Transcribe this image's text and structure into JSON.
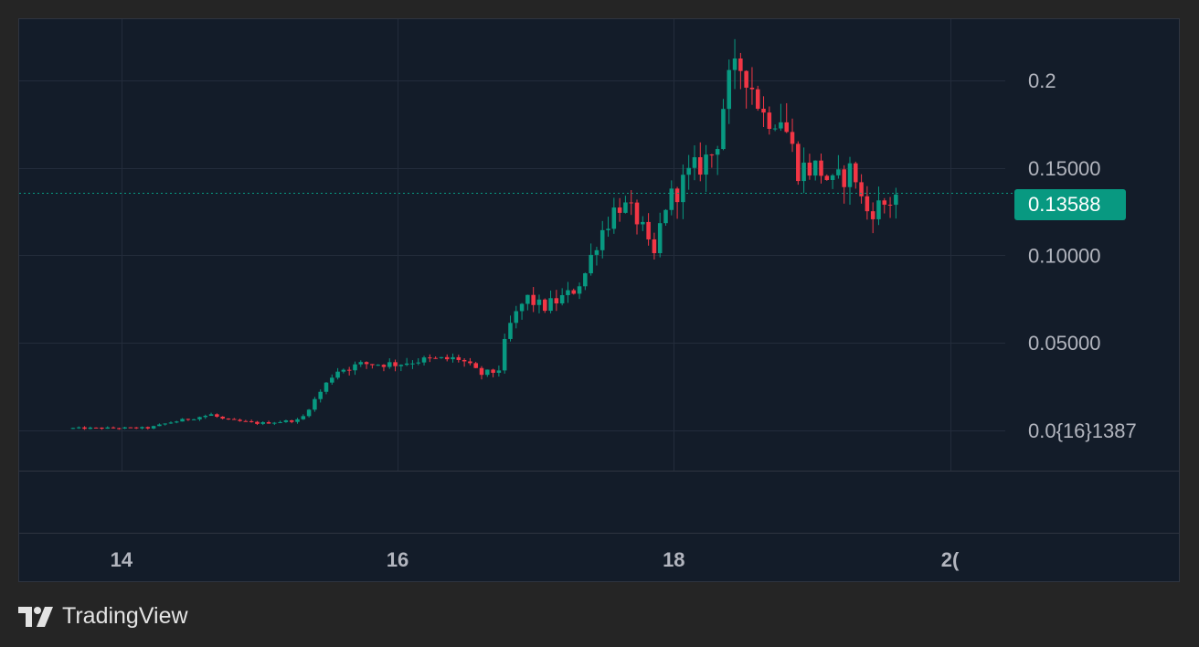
{
  "brand": {
    "name": "TradingView",
    "logo_icon": "tradingview-logo-icon"
  },
  "colors": {
    "up": "#089981",
    "down": "#f23645",
    "background": "#131c29",
    "grid": "#232c3b",
    "text": "#b2b5be"
  },
  "last_price": {
    "label": "0.13588",
    "value": 0.13588
  },
  "chart_data": {
    "type": "candlestick",
    "x_label_texts": [
      "14",
      "16",
      "18",
      "2("
    ],
    "x_ticks": [
      14,
      16,
      18,
      20
    ],
    "y_label_texts": [
      "0.2",
      "0.15000",
      "0.10000",
      "0.05000",
      "0.0{16}1387"
    ],
    "y_ticks": [
      0.2,
      0.15,
      0.1,
      0.05,
      0.0
    ],
    "xlim": [
      13.26,
      20.4
    ],
    "ylim": [
      -0.023,
      0.235
    ],
    "grid": true,
    "last_price_line": 0.13588,
    "keypoints": [
      [
        13.65,
        0.0012
      ],
      [
        14.2,
        0.0014
      ],
      [
        14.35,
        0.0045
      ],
      [
        14.65,
        0.009
      ],
      [
        14.75,
        0.006
      ],
      [
        15.0,
        0.004
      ],
      [
        15.3,
        0.006
      ],
      [
        15.35,
        0.012
      ],
      [
        15.55,
        0.034
      ],
      [
        15.75,
        0.038
      ],
      [
        16.0,
        0.038
      ],
      [
        16.15,
        0.04
      ],
      [
        16.45,
        0.041
      ],
      [
        16.6,
        0.032
      ],
      [
        16.73,
        0.034
      ],
      [
        16.8,
        0.058
      ],
      [
        16.93,
        0.076
      ],
      [
        17.05,
        0.07
      ],
      [
        17.25,
        0.078
      ],
      [
        17.35,
        0.088
      ],
      [
        17.45,
        0.11
      ],
      [
        17.6,
        0.13
      ],
      [
        17.75,
        0.12
      ],
      [
        17.85,
        0.096
      ],
      [
        17.93,
        0.128
      ],
      [
        18.1,
        0.145
      ],
      [
        18.3,
        0.16
      ],
      [
        18.38,
        0.195
      ],
      [
        18.5,
        0.21
      ],
      [
        18.65,
        0.18
      ],
      [
        18.78,
        0.18
      ],
      [
        18.9,
        0.15
      ],
      [
        19.05,
        0.15
      ],
      [
        19.15,
        0.14
      ],
      [
        19.3,
        0.15
      ],
      [
        19.38,
        0.125
      ],
      [
        19.55,
        0.13
      ],
      [
        19.62,
        0.136
      ]
    ],
    "candles_per_day": 24,
    "volatility": 0.06
  }
}
